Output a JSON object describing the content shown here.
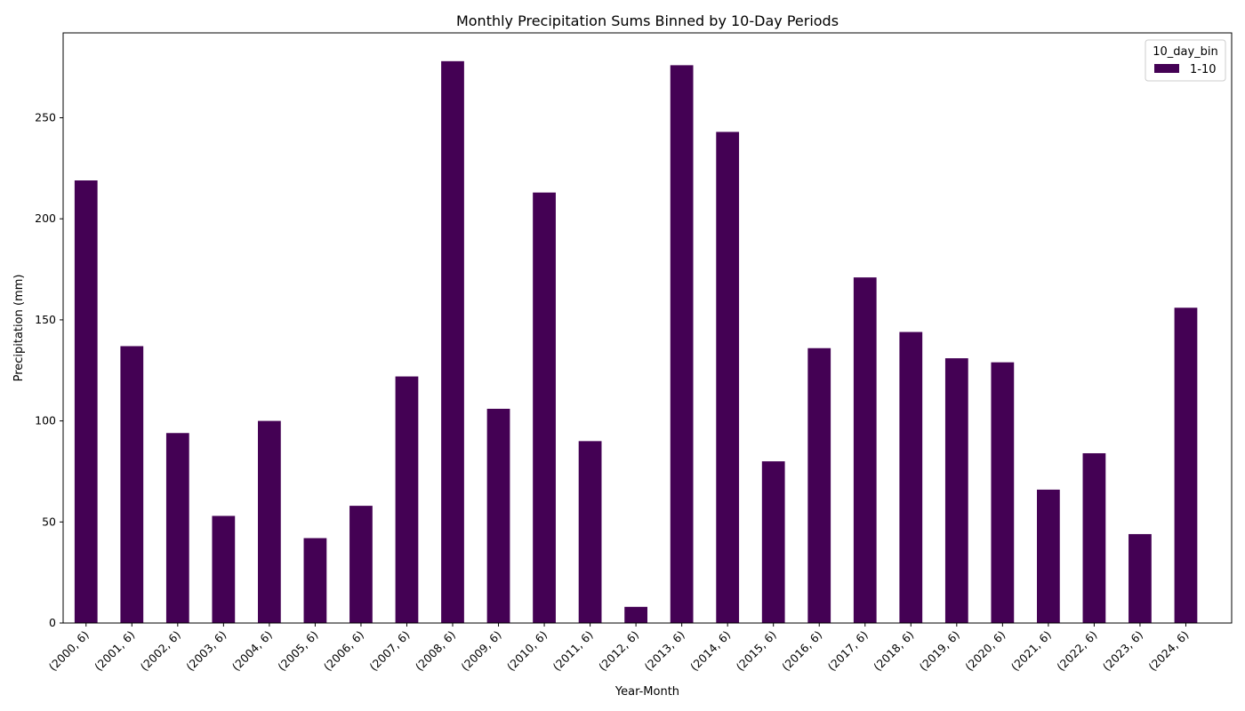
{
  "chart_data": {
    "type": "bar",
    "title": "Monthly Precipitation Sums Binned by 10-Day Periods",
    "xlabel": "Year-Month",
    "ylabel": "Precipitation (mm)",
    "ylim": [
      0,
      292
    ],
    "yticks": [
      0,
      50,
      100,
      150,
      200,
      250
    ],
    "grid": false,
    "legend": {
      "title": "10_day_bin",
      "placement": "top-right"
    },
    "categories": [
      "(2000, 6)",
      "(2001, 6)",
      "(2002, 6)",
      "(2003, 6)",
      "(2004, 6)",
      "(2005, 6)",
      "(2006, 6)",
      "(2007, 6)",
      "(2008, 6)",
      "(2009, 6)",
      "(2010, 6)",
      "(2011, 6)",
      "(2012, 6)",
      "(2013, 6)",
      "(2014, 6)",
      "(2015, 6)",
      "(2016, 6)",
      "(2017, 6)",
      "(2018, 6)",
      "(2019, 6)",
      "(2020, 6)",
      "(2021, 6)",
      "(2022, 6)",
      "(2023, 6)",
      "(2024, 6)"
    ],
    "series": [
      {
        "name": "1-10",
        "color": "#440154",
        "values": [
          219,
          137,
          94,
          53,
          100,
          42,
          58,
          122,
          278,
          106,
          213,
          90,
          8,
          276,
          243,
          80,
          136,
          171,
          144,
          131,
          129,
          66,
          84,
          44,
          156
        ]
      }
    ]
  }
}
